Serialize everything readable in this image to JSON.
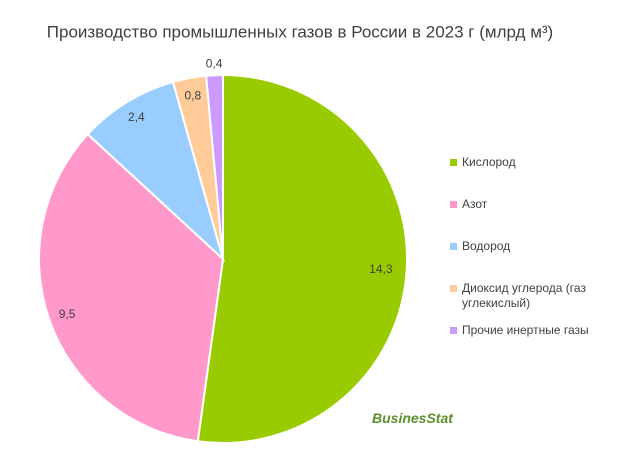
{
  "chart_data": {
    "type": "pie",
    "title": "Производство промышленных газов в России в 2023 г (млрд м³)",
    "categories": [
      "Кислород",
      "Азот",
      "Водород",
      "Диоксид углерода (газ углекислый)",
      "Прочие инертные газы"
    ],
    "values": [
      14.3,
      9.5,
      2.4,
      0.8,
      0.4
    ],
    "value_labels": [
      "14,3",
      "9,5",
      "2,4",
      "0,8",
      "0,4"
    ],
    "colors": [
      "#99cc00",
      "#ff99cc",
      "#99ccff",
      "#ffcc99",
      "#cc99ff"
    ],
    "legend": "right"
  },
  "logo": "BusinesStat"
}
